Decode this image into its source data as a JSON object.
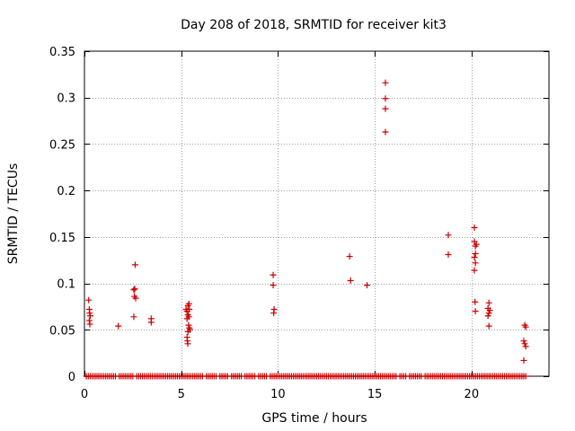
{
  "chart_data": {
    "type": "scatter",
    "title": "Day 208 of 2018, SRMTID for receiver kit3",
    "xlabel": "GPS time / hours",
    "ylabel": "SRMTID / TECUs",
    "xlim": [
      0,
      24
    ],
    "ylim": [
      0,
      0.35
    ],
    "xticks": [
      0,
      5,
      10,
      15,
      20
    ],
    "xtick_labels": [
      "0",
      "5",
      "10",
      "15",
      "20"
    ],
    "yticks": [
      0,
      0.05,
      0.1,
      0.15,
      0.2,
      0.25,
      0.3,
      0.35
    ],
    "ytick_labels": [
      "0",
      "0.05",
      "0.1",
      "0.15",
      "0.2",
      "0.25",
      "0.3",
      "0.35"
    ],
    "grid": true,
    "marker": "+",
    "color": "#cc0000",
    "series": [
      {
        "name": "SRMTID",
        "points": [
          [
            0.22,
            0.082
          ],
          [
            0.25,
            0.072
          ],
          [
            0.27,
            0.068
          ],
          [
            0.3,
            0.065
          ],
          [
            0.25,
            0.06
          ],
          [
            0.28,
            0.056
          ],
          [
            1.75,
            0.054
          ],
          [
            2.55,
            0.093
          ],
          [
            2.6,
            0.094
          ],
          [
            2.62,
            0.12
          ],
          [
            2.58,
            0.086
          ],
          [
            2.65,
            0.084
          ],
          [
            2.55,
            0.064
          ],
          [
            3.45,
            0.062
          ],
          [
            3.45,
            0.058
          ],
          [
            5.25,
            0.072
          ],
          [
            5.3,
            0.07
          ],
          [
            5.35,
            0.076
          ],
          [
            5.4,
            0.078
          ],
          [
            5.35,
            0.066
          ],
          [
            5.3,
            0.062
          ],
          [
            5.38,
            0.055
          ],
          [
            5.42,
            0.052
          ],
          [
            5.45,
            0.05
          ],
          [
            5.35,
            0.048
          ],
          [
            5.3,
            0.042
          ],
          [
            5.32,
            0.038
          ],
          [
            5.34,
            0.035
          ],
          [
            5.4,
            0.064
          ],
          [
            5.42,
            0.072
          ],
          [
            9.75,
            0.109
          ],
          [
            9.75,
            0.098
          ],
          [
            9.8,
            0.072
          ],
          [
            9.78,
            0.068
          ],
          [
            13.7,
            0.129
          ],
          [
            13.75,
            0.103
          ],
          [
            14.6,
            0.098
          ],
          [
            15.55,
            0.316
          ],
          [
            15.55,
            0.299
          ],
          [
            15.55,
            0.288
          ],
          [
            15.55,
            0.263
          ],
          [
            18.8,
            0.152
          ],
          [
            18.8,
            0.131
          ],
          [
            20.15,
            0.16
          ],
          [
            20.15,
            0.145
          ],
          [
            20.2,
            0.14
          ],
          [
            20.25,
            0.142
          ],
          [
            20.2,
            0.132
          ],
          [
            20.15,
            0.128
          ],
          [
            20.2,
            0.122
          ],
          [
            20.15,
            0.114
          ],
          [
            20.18,
            0.08
          ],
          [
            20.2,
            0.07
          ],
          [
            20.9,
            0.079
          ],
          [
            20.85,
            0.073
          ],
          [
            20.95,
            0.071
          ],
          [
            20.9,
            0.068
          ],
          [
            20.85,
            0.065
          ],
          [
            20.9,
            0.054
          ],
          [
            22.75,
            0.055
          ],
          [
            22.8,
            0.053
          ],
          [
            22.7,
            0.038
          ],
          [
            22.75,
            0.035
          ],
          [
            22.8,
            0.032
          ],
          [
            22.7,
            0.017
          ]
        ],
        "zero_points_x": [
          0.1,
          0.2,
          0.3,
          0.4,
          0.5,
          0.6,
          0.7,
          0.8,
          0.9,
          1.0,
          1.1,
          1.2,
          1.3,
          1.4,
          1.5,
          1.6,
          1.8,
          1.9,
          2.0,
          2.1,
          2.2,
          2.3,
          2.4,
          2.5,
          2.7,
          2.8,
          2.9,
          3.0,
          3.1,
          3.2,
          3.3,
          3.4,
          3.5,
          3.6,
          3.7,
          3.8,
          3.9,
          4.0,
          4.1,
          4.2,
          4.3,
          4.4,
          4.5,
          4.6,
          4.7,
          4.8,
          4.9,
          5.0,
          5.1,
          5.2,
          5.3,
          5.4,
          5.5,
          5.6,
          5.7,
          5.8,
          5.9,
          6.0,
          6.1,
          6.3,
          6.4,
          6.5,
          6.6,
          6.7,
          6.8,
          7.0,
          7.1,
          7.2,
          7.3,
          7.4,
          7.6,
          7.7,
          7.8,
          7.9,
          8.0,
          8.1,
          8.3,
          8.4,
          8.5,
          8.6,
          8.7,
          8.8,
          9.0,
          9.1,
          9.2,
          9.3,
          9.4,
          9.6,
          9.7,
          9.8,
          9.9,
          10.0,
          10.1,
          10.2,
          10.3,
          10.4,
          10.5,
          10.6,
          10.7,
          10.8,
          10.9,
          11.0,
          11.1,
          11.2,
          11.3,
          11.4,
          11.5,
          11.6,
          11.7,
          11.8,
          11.9,
          12.0,
          12.1,
          12.2,
          12.3,
          12.4,
          12.5,
          12.6,
          12.7,
          12.8,
          12.9,
          13.0,
          13.1,
          13.2,
          13.3,
          13.4,
          13.5,
          13.6,
          13.7,
          13.8,
          13.9,
          14.0,
          14.1,
          14.2,
          14.3,
          14.4,
          14.5,
          14.6,
          14.7,
          14.8,
          14.9,
          15.0,
          15.1,
          15.2,
          15.3,
          15.4,
          15.5,
          15.6,
          15.7,
          15.8,
          15.9,
          16.0,
          16.1,
          16.3,
          16.4,
          16.5,
          16.6,
          16.8,
          16.9,
          17.0,
          17.1,
          17.2,
          17.3,
          17.4,
          17.6,
          17.7,
          17.8,
          17.9,
          18.0,
          18.1,
          18.2,
          18.3,
          18.4,
          18.5,
          18.6,
          18.7,
          18.8,
          18.9,
          19.0,
          19.1,
          19.2,
          19.3,
          19.4,
          19.5,
          19.6,
          19.7,
          19.8,
          19.9,
          20.0,
          20.1,
          20.2,
          20.3,
          20.4,
          20.5,
          20.6,
          20.7,
          20.8,
          20.9,
          21.0,
          21.1,
          21.2,
          21.3,
          21.4,
          21.5,
          21.6,
          21.7,
          21.8,
          21.9,
          22.0,
          22.1,
          22.2,
          22.3,
          22.4,
          22.5,
          22.6,
          22.7,
          22.8
        ]
      }
    ]
  }
}
